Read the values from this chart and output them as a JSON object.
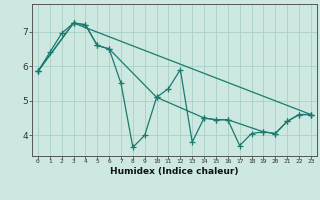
{
  "title": "",
  "xlabel": "Humidex (Indice chaleur)",
  "ylabel": "",
  "line_color": "#1a7a6e",
  "bg_color": "#cce8e0",
  "grid_color": "#aacec8",
  "xlim": [
    -0.5,
    23.5
  ],
  "ylim": [
    3.4,
    7.8
  ],
  "yticks": [
    4,
    5,
    6,
    7
  ],
  "xticks": [
    0,
    1,
    2,
    3,
    4,
    5,
    6,
    7,
    8,
    9,
    10,
    11,
    12,
    13,
    14,
    15,
    16,
    17,
    18,
    19,
    20,
    21,
    22,
    23
  ],
  "line1_x": [
    0,
    1,
    2,
    3,
    4,
    5,
    6,
    7,
    8,
    9,
    10,
    11,
    12,
    13,
    14,
    15,
    16,
    17,
    18,
    19,
    20,
    21,
    22,
    23
  ],
  "line1_y": [
    5.85,
    6.4,
    6.95,
    7.25,
    7.2,
    6.6,
    6.5,
    5.5,
    3.65,
    4.0,
    5.1,
    5.35,
    5.9,
    3.8,
    4.5,
    4.45,
    4.45,
    3.7,
    4.05,
    4.1,
    4.05,
    4.4,
    4.6,
    4.6
  ],
  "line2_x": [
    0,
    3,
    4,
    5,
    6,
    10,
    14,
    15,
    16,
    19,
    20,
    21,
    22,
    23
  ],
  "line2_y": [
    5.85,
    7.25,
    7.2,
    6.6,
    6.5,
    5.1,
    4.5,
    4.45,
    4.45,
    4.1,
    4.05,
    4.4,
    4.6,
    4.6
  ],
  "line3_x": [
    0,
    3,
    23
  ],
  "line3_y": [
    5.85,
    7.25,
    4.6
  ],
  "marker": "+",
  "markersize": 4,
  "linewidth": 0.9
}
